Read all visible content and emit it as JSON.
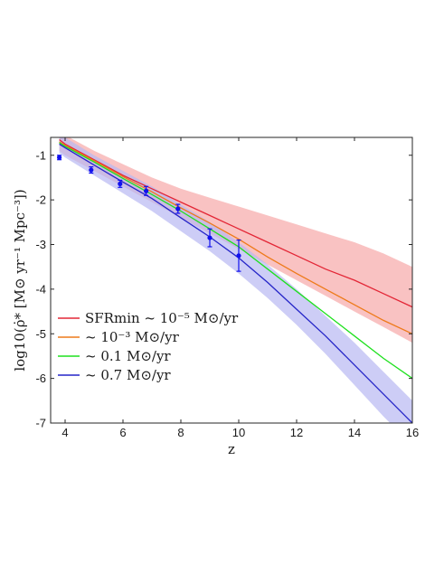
{
  "chart_data": {
    "type": "line",
    "xlabel": "z",
    "ylabel": "log10(ρ̇* [M⊙ yr⁻¹ Mpc⁻³])",
    "xlim": [
      3.5,
      16
    ],
    "ylim": [
      -7,
      -0.6
    ],
    "xticks": [
      "4",
      "6",
      "8",
      "10",
      "12",
      "14",
      "16"
    ],
    "yticks": [
      "-1",
      "-2",
      "-3",
      "-4",
      "-5",
      "-6",
      "-7"
    ],
    "legend_position": "lower-left",
    "bands": [
      {
        "color": "#f7a8a8",
        "x": [
          3.8,
          4,
          5,
          6,
          7,
          8,
          9,
          10,
          11,
          12,
          13,
          14,
          15,
          16
        ],
        "upper": [
          -0.45,
          -0.55,
          -0.9,
          -1.2,
          -1.5,
          -1.75,
          -1.95,
          -2.15,
          -2.35,
          -2.55,
          -2.75,
          -2.95,
          -3.2,
          -3.5
        ],
        "lower": [
          -0.9,
          -1.0,
          -1.35,
          -1.7,
          -2.05,
          -2.4,
          -2.75,
          -3.1,
          -3.45,
          -3.8,
          -4.15,
          -4.5,
          -4.85,
          -5.2
        ]
      },
      {
        "color": "#b8b8f2",
        "x": [
          3.8,
          4,
          5,
          6,
          7,
          8,
          9,
          10,
          11,
          12,
          13,
          14,
          15,
          16
        ],
        "upper": [
          -0.5,
          -0.6,
          -1.0,
          -1.35,
          -1.7,
          -2.1,
          -2.5,
          -2.95,
          -3.45,
          -4.0,
          -4.6,
          -5.2,
          -5.85,
          -6.5
        ],
        "lower": [
          -0.95,
          -1.05,
          -1.45,
          -1.85,
          -2.25,
          -2.7,
          -3.15,
          -3.65,
          -4.2,
          -4.8,
          -5.45,
          -6.15,
          -6.85,
          -7.5
        ]
      }
    ],
    "series": [
      {
        "name": "SFR",
        "legend_label": "SFRmin ~ 10⁻⁵ M⊙/yr",
        "color": "#e32636",
        "x": [
          3.8,
          4,
          5,
          6,
          7,
          8,
          9,
          10,
          11,
          12,
          13,
          14,
          15,
          16
        ],
        "y": [
          -0.65,
          -0.75,
          -1.1,
          -1.45,
          -1.75,
          -2.05,
          -2.35,
          -2.65,
          -2.95,
          -3.25,
          -3.55,
          -3.8,
          -4.1,
          -4.4
        ]
      },
      {
        "name": "1e-3",
        "legend_label": "~ 10⁻³ M⊙/yr",
        "color": "#ee7a1a",
        "x": [
          3.8,
          4,
          5,
          6,
          7,
          8,
          9,
          10,
          11,
          12,
          13,
          14,
          15,
          16
        ],
        "y": [
          -0.7,
          -0.78,
          -1.12,
          -1.48,
          -1.82,
          -2.18,
          -2.52,
          -2.88,
          -3.28,
          -3.65,
          -4.0,
          -4.35,
          -4.7,
          -5.0
        ]
      },
      {
        "name": "0.1",
        "legend_label": "~ 0.1 M⊙/yr",
        "color": "#1ee01e",
        "x": [
          3.8,
          4,
          5,
          6,
          7,
          8,
          9,
          10,
          11,
          12,
          13,
          14,
          15,
          16
        ],
        "y": [
          -0.72,
          -0.8,
          -1.15,
          -1.52,
          -1.88,
          -2.25,
          -2.65,
          -3.05,
          -3.55,
          -4.05,
          -4.55,
          -5.05,
          -5.55,
          -6.0
        ]
      },
      {
        "name": "0.7",
        "legend_label": "~ 0.7 M⊙/yr",
        "color": "#2525c8",
        "x": [
          3.8,
          4,
          5,
          6,
          7,
          8,
          9,
          10,
          11,
          12,
          13,
          14,
          15,
          16
        ],
        "y": [
          -0.75,
          -0.83,
          -1.22,
          -1.6,
          -1.97,
          -2.4,
          -2.83,
          -3.3,
          -3.85,
          -4.45,
          -5.05,
          -5.7,
          -6.35,
          -7.0
        ]
      }
    ],
    "points": {
      "color": "#1010ee",
      "x": [
        3.8,
        4.9,
        5.9,
        6.8,
        7.9,
        9.0,
        10.0
      ],
      "y": [
        -1.05,
        -1.33,
        -1.64,
        -1.8,
        -2.2,
        -2.85,
        -3.25
      ],
      "yerr": [
        0.05,
        0.07,
        0.08,
        0.1,
        0.1,
        0.2,
        0.35
      ]
    }
  }
}
